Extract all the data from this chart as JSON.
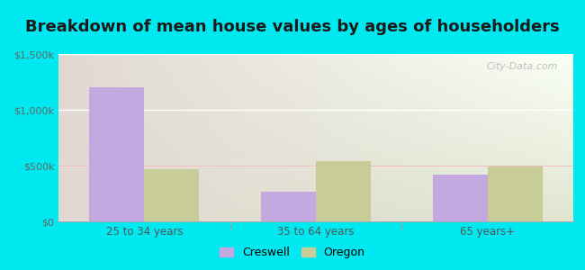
{
  "title": "Breakdown of mean house values by ages of householders",
  "categories": [
    "25 to 34 years",
    "35 to 64 years",
    "65 years+"
  ],
  "creswell_values": [
    1200000,
    270000,
    420000
  ],
  "oregon_values": [
    470000,
    540000,
    490000
  ],
  "creswell_color": "#c4a8e0",
  "oregon_color": "#c8cc96",
  "ylim": [
    0,
    1500000
  ],
  "yticks": [
    0,
    500000,
    1000000,
    1500000
  ],
  "ytick_labels": [
    "$0",
    "$500k",
    "$1,000k",
    "$1,500k"
  ],
  "bar_width": 0.32,
  "background_outer": "#00e8f0",
  "title_fontsize": 13,
  "legend_labels": [
    "Creswell",
    "Oregon"
  ],
  "watermark": "City-Data.com"
}
